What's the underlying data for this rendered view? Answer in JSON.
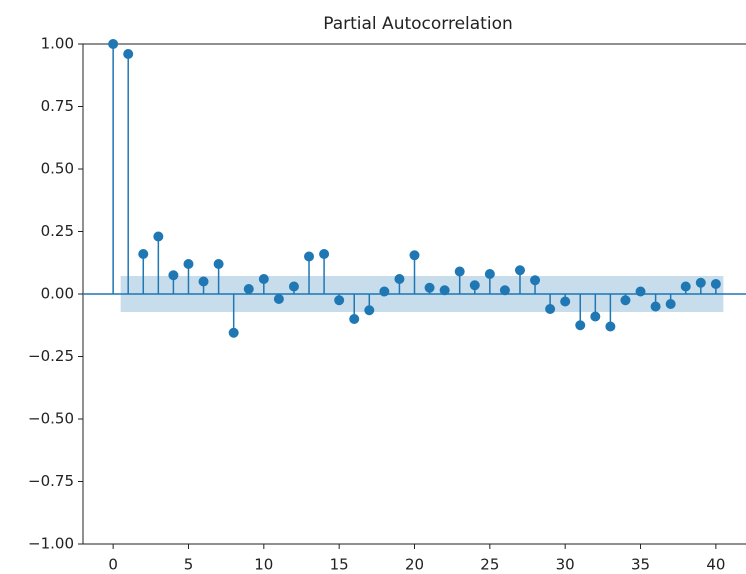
{
  "chart_data": {
    "type": "stem",
    "title": "Partial Autocorrelation",
    "x": [
      0,
      1,
      2,
      3,
      4,
      5,
      6,
      7,
      8,
      9,
      10,
      11,
      12,
      13,
      14,
      15,
      16,
      17,
      18,
      19,
      20,
      21,
      22,
      23,
      24,
      25,
      26,
      27,
      28,
      29,
      30,
      31,
      32,
      33,
      34,
      35,
      36,
      37,
      38,
      39,
      40
    ],
    "values": [
      1.0,
      0.96,
      0.16,
      0.23,
      0.075,
      0.12,
      0.05,
      0.12,
      -0.155,
      0.02,
      0.06,
      -0.02,
      0.03,
      0.15,
      0.16,
      -0.025,
      -0.1,
      -0.065,
      0.01,
      0.06,
      0.155,
      0.025,
      0.015,
      0.09,
      0.035,
      0.08,
      0.015,
      0.095,
      0.055,
      -0.06,
      -0.03,
      -0.125,
      -0.09,
      -0.13,
      -0.025,
      0.01,
      -0.05,
      -0.04,
      0.03,
      0.045,
      0.04
    ],
    "confint": 0.072,
    "color": "#1f77b4",
    "xlim": [
      -2,
      42
    ],
    "xticks": [
      0,
      5,
      10,
      15,
      20,
      25,
      30,
      35,
      40
    ],
    "ylim": [
      -1,
      1
    ],
    "yticks": [
      {
        "value": -1,
        "label": "−1.00"
      },
      {
        "value": -0.75,
        "label": "−0.75"
      },
      {
        "value": -0.5,
        "label": "−0.50"
      },
      {
        "value": -0.25,
        "label": "−0.25"
      },
      {
        "value": 0,
        "label": "0.00"
      },
      {
        "value": 0.25,
        "label": "0.25"
      },
      {
        "value": 0.5,
        "label": "0.50"
      },
      {
        "value": 0.75,
        "label": "0.75"
      },
      {
        "value": 1,
        "label": "1.00"
      }
    ]
  }
}
